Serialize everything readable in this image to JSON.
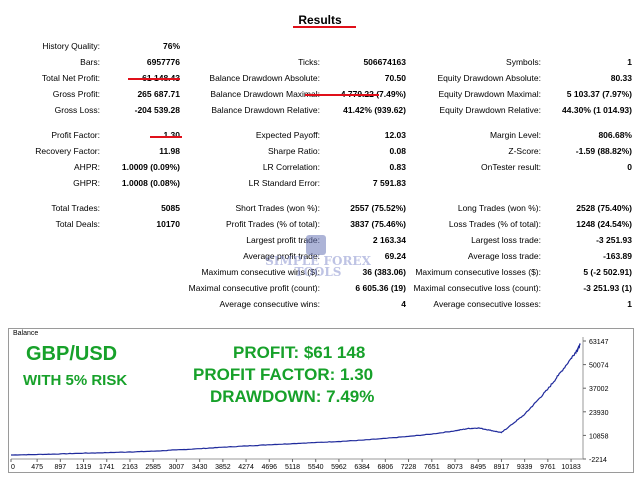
{
  "title": "Results",
  "stats": {
    "history_quality": {
      "label": "History Quality:",
      "value": "76%"
    },
    "bars": {
      "label": "Bars:",
      "value": "6957776"
    },
    "ticks": {
      "label": "Ticks:",
      "value": "506674163"
    },
    "symbols": {
      "label": "Symbols:",
      "value": "1"
    },
    "total_net_profit": {
      "label": "Total Net Profit:",
      "value": "61 148.43"
    },
    "balance_dd_abs": {
      "label": "Balance Drawdown Absolute:",
      "value": "70.50"
    },
    "equity_dd_abs": {
      "label": "Equity Drawdown Absolute:",
      "value": "80.33"
    },
    "gross_profit": {
      "label": "Gross Profit:",
      "value": "265 687.71"
    },
    "balance_dd_max": {
      "label": "Balance Drawdown Maximal:",
      "value": "4 779.22 (7.49%)"
    },
    "equity_dd_max": {
      "label": "Equity Drawdown Maximal:",
      "value": "5 103.37 (7.97%)"
    },
    "gross_loss": {
      "label": "Gross Loss:",
      "value": "-204 539.28"
    },
    "balance_dd_rel": {
      "label": "Balance Drawdown Relative:",
      "value": "41.42% (939.62)"
    },
    "equity_dd_rel": {
      "label": "Equity Drawdown Relative:",
      "value": "44.30% (1 014.93)"
    },
    "profit_factor": {
      "label": "Profit Factor:",
      "value": "1.30"
    },
    "expected_payoff": {
      "label": "Expected Payoff:",
      "value": "12.03"
    },
    "margin_level": {
      "label": "Margin Level:",
      "value": "806.68%"
    },
    "recovery_factor": {
      "label": "Recovery Factor:",
      "value": "11.98"
    },
    "sharpe_ratio": {
      "label": "Sharpe Ratio:",
      "value": "0.08"
    },
    "z_score": {
      "label": "Z-Score:",
      "value": "-1.59 (88.82%)"
    },
    "ahpr": {
      "label": "AHPR:",
      "value": "1.0009 (0.09%)"
    },
    "lr_correlation": {
      "label": "LR Correlation:",
      "value": "0.83"
    },
    "ontester": {
      "label": "OnTester result:",
      "value": "0"
    },
    "ghpr": {
      "label": "GHPR:",
      "value": "1.0008 (0.08%)"
    },
    "lr_std_error": {
      "label": "LR Standard Error:",
      "value": "7 591.83"
    },
    "total_trades": {
      "label": "Total Trades:",
      "value": "5085"
    },
    "short_trades": {
      "label": "Short Trades (won %):",
      "value": "2557 (75.52%)"
    },
    "long_trades": {
      "label": "Long Trades (won %):",
      "value": "2528 (75.40%)"
    },
    "total_deals": {
      "label": "Total Deals:",
      "value": "10170"
    },
    "profit_trades": {
      "label": "Profit Trades (% of total):",
      "value": "3837 (75.46%)"
    },
    "loss_trades": {
      "label": "Loss Trades (% of total):",
      "value": "1248 (24.54%)"
    },
    "largest_profit": {
      "label": "Largest profit trade:",
      "value": "2 163.34"
    },
    "largest_loss": {
      "label": "Largest loss trade:",
      "value": "-3 251.93"
    },
    "average_profit": {
      "label": "Average profit trade:",
      "value": "69.24"
    },
    "average_loss": {
      "label": "Average loss trade:",
      "value": "-163.89"
    },
    "max_consec_wins": {
      "label": "Maximum consecutive wins ($):",
      "value": "36 (383.06)"
    },
    "max_consec_losses": {
      "label": "Maximum consecutive losses ($):",
      "value": "5 (-2 502.91)"
    },
    "maximal_consec_profit": {
      "label": "Maximal consecutive profit (count):",
      "value": "6 605.36 (19)"
    },
    "maximal_consec_loss": {
      "label": "Maximal consecutive loss (count):",
      "value": "-3 251.93 (1)"
    },
    "avg_consec_wins": {
      "label": "Average consecutive wins:",
      "value": "4"
    },
    "avg_consec_losses": {
      "label": "Average consecutive losses:",
      "value": "1"
    }
  },
  "watermark": {
    "line1": "SIMPLE FOREX",
    "line2": "TOOLS"
  },
  "chart": {
    "panel_label": "Balance",
    "pair": "GBP/USD",
    "risk": "WITH 5% RISK",
    "profit_text": "PROFIT: $61 148",
    "pf_text": "PROFIT FACTOR: 1.30",
    "dd_text": "DRAWDOWN: 7.49%",
    "accent_green": "#17a12a",
    "line_color": "#1f2a9c",
    "underline_color": "#e0101a"
  },
  "chart_data": {
    "type": "line",
    "title": "",
    "xlabel": "",
    "ylabel": "",
    "x_ticks": [
      "0",
      "475",
      "897",
      "1319",
      "1741",
      "2163",
      "2585",
      "3007",
      "3430",
      "3852",
      "4274",
      "4696",
      "5118",
      "5540",
      "5962",
      "6384",
      "6806",
      "7228",
      "7651",
      "8073",
      "8495",
      "8917",
      "9339",
      "9761",
      "10183"
    ],
    "y_ticks": [
      "63147",
      "50074",
      "37002",
      "23930",
      "10858",
      "-2214"
    ],
    "xlim": [
      0,
      10400
    ],
    "ylim": [
      -2214,
      63147
    ],
    "series": [
      {
        "x": [
          0,
          475,
          897,
          1319,
          1741,
          2163,
          2585,
          3007,
          3430,
          3852,
          4274,
          4696,
          5118,
          5540,
          5962,
          6384,
          6806,
          7228,
          7651,
          8073,
          8300,
          8495,
          8700,
          8917,
          9100,
          9339,
          9550,
          9761,
          9950,
          10183,
          10300,
          10350
        ],
        "values": [
          0,
          300,
          600,
          1000,
          1300,
          1700,
          2100,
          2800,
          3500,
          4300,
          5000,
          5700,
          6300,
          6900,
          7500,
          8200,
          9200,
          10300,
          11600,
          13400,
          14600,
          15000,
          13800,
          12400,
          16800,
          22500,
          29500,
          36500,
          44000,
          53500,
          58500,
          61148
        ]
      }
    ]
  }
}
